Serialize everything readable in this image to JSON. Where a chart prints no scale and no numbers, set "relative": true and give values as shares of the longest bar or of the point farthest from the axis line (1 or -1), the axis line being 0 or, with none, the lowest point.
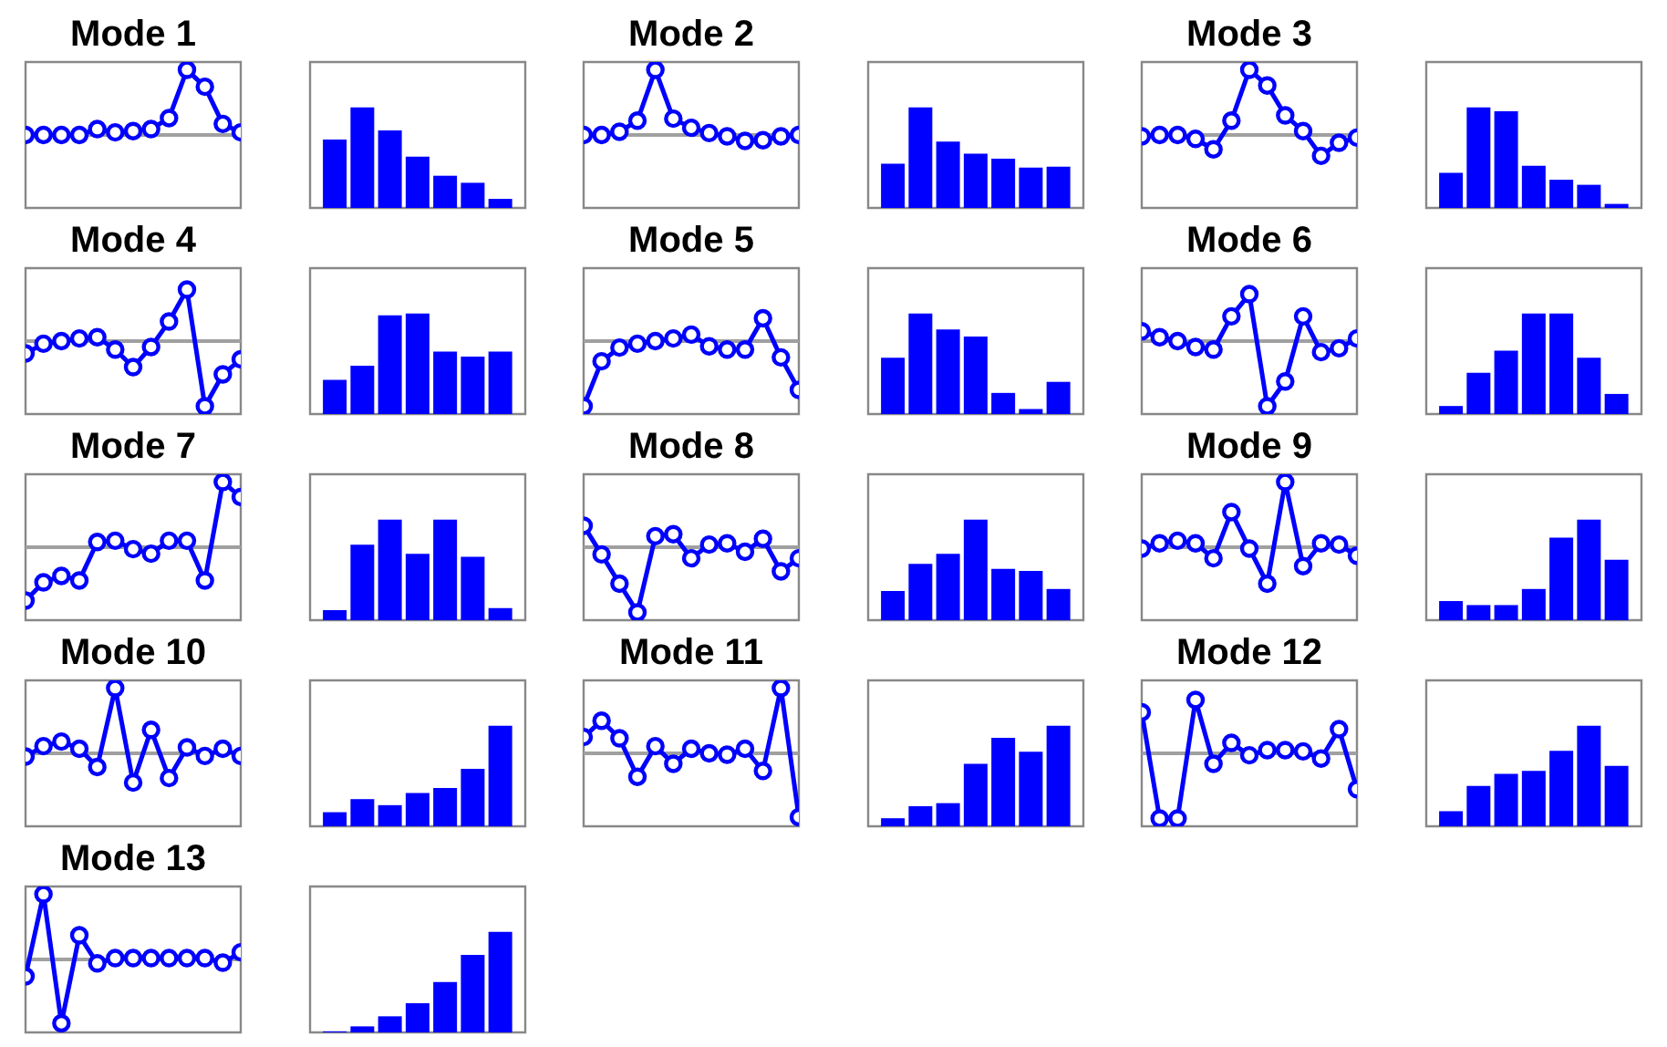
{
  "chart_data": [
    {
      "type": "line",
      "title": "Mode 1",
      "relative": true,
      "marker": "circle",
      "categories": [
        null,
        null,
        null,
        null,
        null,
        null,
        null,
        null,
        null,
        null,
        null,
        null,
        null
      ],
      "series": [
        {
          "color": "#0000ff",
          "values": [
            0,
            0,
            0,
            0,
            0.09,
            0.04,
            0.06,
            0.09,
            0.26,
            1,
            0.74,
            0.17,
            0.04
          ]
        }
      ],
      "ref_lines": [
        {
          "axis": "y",
          "value": 0,
          "color": "#a0a0a0"
        }
      ]
    },
    {
      "type": "bar",
      "relative": true,
      "categories": [
        null,
        null,
        null,
        null,
        null,
        null,
        null
      ],
      "values": [
        0.68,
        1,
        0.77,
        0.51,
        0.32,
        0.25,
        0.09
      ],
      "color": "#0000ff"
    },
    {
      "type": "line",
      "title": "Mode 2",
      "relative": true,
      "marker": "circle",
      "categories": [
        null,
        null,
        null,
        null,
        null,
        null,
        null,
        null,
        null,
        null,
        null,
        null,
        null
      ],
      "series": [
        {
          "color": "#0000ff",
          "values": [
            0,
            0,
            0.05,
            0.22,
            1,
            0.25,
            0.11,
            0.03,
            -0.02,
            -0.09,
            -0.08,
            -0.02,
            0
          ]
        }
      ],
      "ref_lines": [
        {
          "axis": "y",
          "value": 0,
          "color": "#a0a0a0"
        }
      ]
    },
    {
      "type": "bar",
      "relative": true,
      "categories": [
        null,
        null,
        null,
        null,
        null,
        null,
        null
      ],
      "values": [
        0.44,
        1,
        0.66,
        0.54,
        0.49,
        0.4,
        0.41
      ],
      "color": "#0000ff"
    },
    {
      "type": "line",
      "title": "Mode 3",
      "relative": true,
      "marker": "circle",
      "categories": [
        null,
        null,
        null,
        null,
        null,
        null,
        null,
        null,
        null,
        null,
        null,
        null,
        null
      ],
      "series": [
        {
          "color": "#0000ff",
          "values": [
            -0.02,
            0,
            0,
            -0.06,
            -0.22,
            0.22,
            1,
            0.76,
            0.3,
            0.06,
            -0.32,
            -0.12,
            -0.04
          ]
        }
      ],
      "ref_lines": [
        {
          "axis": "y",
          "value": 0,
          "color": "#a0a0a0"
        }
      ]
    },
    {
      "type": "bar",
      "relative": true,
      "categories": [
        null,
        null,
        null,
        null,
        null,
        null,
        null
      ],
      "values": [
        0.35,
        1,
        0.96,
        0.42,
        0.28,
        0.23,
        0.04
      ],
      "color": "#0000ff"
    },
    {
      "type": "line",
      "title": "Mode 4",
      "relative": true,
      "marker": "circle",
      "categories": [
        null,
        null,
        null,
        null,
        null,
        null,
        null,
        null,
        null,
        null,
        null,
        null,
        null
      ],
      "series": [
        {
          "color": "#0000ff",
          "values": [
            -0.19,
            -0.04,
            0,
            0.04,
            0.06,
            -0.13,
            -0.4,
            -0.09,
            0.3,
            0.79,
            -1,
            -0.51,
            -0.28
          ]
        }
      ],
      "ref_lines": [
        {
          "axis": "y",
          "value": 0,
          "color": "#a0a0a0"
        }
      ]
    },
    {
      "type": "bar",
      "relative": true,
      "categories": [
        null,
        null,
        null,
        null,
        null,
        null,
        null
      ],
      "values": [
        0.34,
        0.48,
        0.98,
        1,
        0.62,
        0.57,
        0.62
      ],
      "color": "#0000ff"
    },
    {
      "type": "line",
      "title": "Mode 5",
      "relative": true,
      "marker": "circle",
      "categories": [
        null,
        null,
        null,
        null,
        null,
        null,
        null,
        null,
        null,
        null,
        null,
        null,
        null
      ],
      "series": [
        {
          "color": "#0000ff",
          "values": [
            -1,
            -0.31,
            -0.1,
            -0.04,
            0,
            0.04,
            0.1,
            -0.08,
            -0.13,
            -0.13,
            0.35,
            -0.25,
            -0.75
          ]
        }
      ],
      "ref_lines": [
        {
          "axis": "y",
          "value": 0,
          "color": "#a0a0a0"
        }
      ]
    },
    {
      "type": "bar",
      "relative": true,
      "categories": [
        null,
        null,
        null,
        null,
        null,
        null,
        null
      ],
      "values": [
        0.56,
        1,
        0.84,
        0.77,
        0.21,
        0.05,
        0.32
      ],
      "color": "#0000ff"
    },
    {
      "type": "line",
      "title": "Mode 6",
      "relative": true,
      "marker": "circle",
      "categories": [
        null,
        null,
        null,
        null,
        null,
        null,
        null,
        null,
        null,
        null,
        null,
        null,
        null
      ],
      "series": [
        {
          "color": "#0000ff",
          "values": [
            0.15,
            0.06,
            0,
            -0.09,
            -0.13,
            0.38,
            0.72,
            -1,
            -0.62,
            0.38,
            -0.17,
            -0.11,
            0.04
          ]
        }
      ],
      "ref_lines": [
        {
          "axis": "y",
          "value": 0,
          "color": "#a0a0a0"
        }
      ]
    },
    {
      "type": "bar",
      "relative": true,
      "categories": [
        null,
        null,
        null,
        null,
        null,
        null,
        null
      ],
      "values": [
        0.08,
        0.41,
        0.63,
        1,
        1,
        0.56,
        0.2
      ],
      "color": "#0000ff"
    },
    {
      "type": "line",
      "title": "Mode 7",
      "relative": true,
      "marker": "circle",
      "categories": [
        null,
        null,
        null,
        null,
        null,
        null,
        null,
        null,
        null,
        null,
        null,
        null,
        null
      ],
      "series": [
        {
          "color": "#0000ff",
          "values": [
            -0.82,
            -0.54,
            -0.44,
            -0.51,
            0.08,
            0.1,
            -0.03,
            -0.1,
            0.1,
            0.1,
            -0.51,
            1,
            0.77
          ]
        }
      ],
      "ref_lines": [
        {
          "axis": "y",
          "value": 0,
          "color": "#a0a0a0"
        }
      ]
    },
    {
      "type": "bar",
      "relative": true,
      "categories": [
        null,
        null,
        null,
        null,
        null,
        null,
        null
      ],
      "values": [
        0.1,
        0.75,
        1,
        0.66,
        1,
        0.63,
        0.12
      ],
      "color": "#0000ff"
    },
    {
      "type": "line",
      "title": "Mode 8",
      "relative": true,
      "marker": "circle",
      "categories": [
        null,
        null,
        null,
        null,
        null,
        null,
        null,
        null,
        null,
        null,
        null,
        null,
        null
      ],
      "series": [
        {
          "color": "#0000ff",
          "values": [
            0.33,
            -0.11,
            -0.56,
            -1,
            0.17,
            0.2,
            -0.17,
            0.04,
            0.06,
            -0.07,
            0.13,
            -0.37,
            -0.17
          ]
        }
      ],
      "ref_lines": [
        {
          "axis": "y",
          "value": 0,
          "color": "#a0a0a0"
        }
      ]
    },
    {
      "type": "bar",
      "relative": true,
      "categories": [
        null,
        null,
        null,
        null,
        null,
        null,
        null
      ],
      "values": [
        0.29,
        0.56,
        0.66,
        1,
        0.51,
        0.49,
        0.31
      ],
      "color": "#0000ff"
    },
    {
      "type": "line",
      "title": "Mode 9",
      "relative": true,
      "marker": "circle",
      "categories": [
        null,
        null,
        null,
        null,
        null,
        null,
        null,
        null,
        null,
        null,
        null,
        null,
        null
      ],
      "series": [
        {
          "color": "#0000ff",
          "values": [
            -0.02,
            0.06,
            0.1,
            0.06,
            -0.17,
            0.54,
            -0.02,
            -0.56,
            1,
            -0.29,
            0.06,
            0.04,
            -0.13
          ]
        }
      ],
      "ref_lines": [
        {
          "axis": "y",
          "value": 0,
          "color": "#a0a0a0"
        }
      ]
    },
    {
      "type": "bar",
      "relative": true,
      "categories": [
        null,
        null,
        null,
        null,
        null,
        null,
        null
      ],
      "values": [
        0.19,
        0.15,
        0.15,
        0.31,
        0.82,
        1,
        0.6
      ],
      "color": "#0000ff"
    },
    {
      "type": "line",
      "title": "Mode 10",
      "relative": true,
      "marker": "circle",
      "categories": [
        null,
        null,
        null,
        null,
        null,
        null,
        null,
        null,
        null,
        null,
        null,
        null,
        null
      ],
      "series": [
        {
          "color": "#0000ff",
          "values": [
            -0.05,
            0.11,
            0.18,
            0.07,
            -0.21,
            1,
            -0.45,
            0.36,
            -0.38,
            0.09,
            -0.04,
            0.07,
            -0.04
          ]
        }
      ],
      "ref_lines": [
        {
          "axis": "y",
          "value": 0,
          "color": "#a0a0a0"
        }
      ]
    },
    {
      "type": "bar",
      "relative": true,
      "categories": [
        null,
        null,
        null,
        null,
        null,
        null,
        null
      ],
      "values": [
        0.14,
        0.27,
        0.21,
        0.33,
        0.38,
        0.57,
        1
      ],
      "color": "#0000ff"
    },
    {
      "type": "line",
      "title": "Mode 11",
      "relative": true,
      "marker": "circle",
      "categories": [
        null,
        null,
        null,
        null,
        null,
        null,
        null,
        null,
        null,
        null,
        null,
        null,
        null
      ],
      "series": [
        {
          "color": "#0000ff",
          "values": [
            0.25,
            0.5,
            0.23,
            -0.36,
            0.11,
            -0.16,
            0.07,
            0,
            -0.02,
            0.07,
            -0.27,
            1,
            -0.98
          ]
        }
      ],
      "ref_lines": [
        {
          "axis": "y",
          "value": 0,
          "color": "#a0a0a0"
        }
      ]
    },
    {
      "type": "bar",
      "relative": true,
      "categories": [
        null,
        null,
        null,
        null,
        null,
        null,
        null
      ],
      "values": [
        0.08,
        0.2,
        0.23,
        0.62,
        0.88,
        0.74,
        1
      ],
      "color": "#0000ff"
    },
    {
      "type": "line",
      "title": "Mode 12",
      "relative": true,
      "marker": "circle",
      "categories": [
        null,
        null,
        null,
        null,
        null,
        null,
        null,
        null,
        null,
        null,
        null,
        null,
        null
      ],
      "series": [
        {
          "color": "#0000ff",
          "values": [
            0.63,
            -1,
            -1,
            0.82,
            -0.16,
            0.16,
            -0.03,
            0.05,
            0.05,
            0.03,
            -0.08,
            0.37,
            -0.55
          ]
        }
      ],
      "ref_lines": [
        {
          "axis": "y",
          "value": 0,
          "color": "#a0a0a0"
        }
      ]
    },
    {
      "type": "bar",
      "relative": true,
      "categories": [
        null,
        null,
        null,
        null,
        null,
        null,
        null
      ],
      "values": [
        0.15,
        0.4,
        0.52,
        0.55,
        0.75,
        1,
        0.6
      ],
      "color": "#0000ff"
    },
    {
      "type": "line",
      "title": "Mode 13",
      "relative": true,
      "marker": "circle",
      "categories": [
        null,
        null,
        null,
        null,
        null,
        null,
        null,
        null,
        null,
        null,
        null,
        null,
        null
      ],
      "series": [
        {
          "color": "#0000ff",
          "values": [
            -0.26,
            1,
            -0.98,
            0.37,
            -0.06,
            0.02,
            0.02,
            0.02,
            0.02,
            0.02,
            0.02,
            -0.05,
            0.11
          ]
        }
      ],
      "ref_lines": [
        {
          "axis": "y",
          "value": 0,
          "color": "#a0a0a0"
        }
      ]
    },
    {
      "type": "bar",
      "relative": true,
      "categories": [
        null,
        null,
        null,
        null,
        null,
        null,
        null
      ],
      "values": [
        0.01,
        0.06,
        0.16,
        0.29,
        0.5,
        0.77,
        1
      ],
      "color": "#0000ff"
    }
  ]
}
